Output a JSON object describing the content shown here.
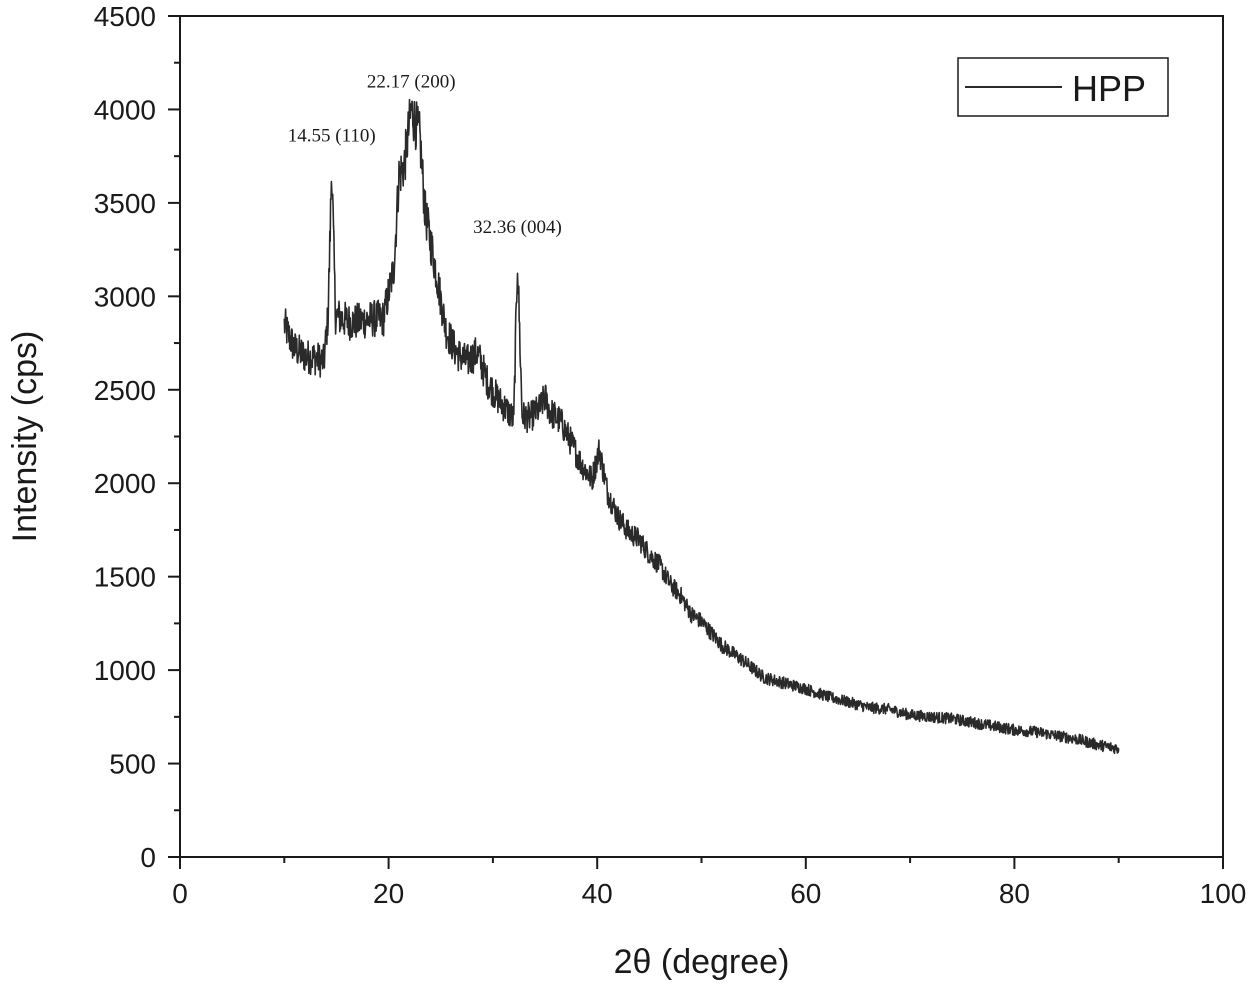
{
  "chart_data": {
    "type": "line",
    "title": "",
    "xlabel": "2θ (degree)",
    "ylabel": "Intensity (cps)",
    "xlim": [
      0,
      100
    ],
    "ylim": [
      0,
      4500
    ],
    "xticks": [
      0,
      20,
      40,
      60,
      80,
      100
    ],
    "yticks": [
      0,
      500,
      1000,
      1500,
      2000,
      2500,
      3000,
      3500,
      4000,
      4500
    ],
    "grid": false,
    "legend": {
      "position": "top-right",
      "entries": [
        "HPP"
      ]
    },
    "line_color": "#2a2a2a",
    "series": [
      {
        "name": "HPP",
        "x": [
          10,
          10.5,
          11,
          12,
          13,
          13.8,
          14.2,
          14.55,
          14.9,
          15.5,
          16.5,
          17.5,
          18.5,
          19.5,
          20.5,
          21,
          21.5,
          22.17,
          23,
          23.5,
          24.5,
          25.5,
          26.5,
          27.5,
          28.5,
          29.5,
          30.5,
          31.5,
          32.0,
          32.36,
          32.8,
          33.5,
          34.5,
          35,
          35.5,
          36.5,
          37.5,
          38.5,
          39.5,
          40.2,
          41,
          42,
          43,
          44,
          45,
          46,
          47,
          48,
          49,
          50,
          52,
          54,
          56,
          58,
          60,
          62,
          64,
          66,
          68,
          70,
          72,
          74,
          76,
          78,
          80,
          82,
          84,
          86,
          88,
          90
        ],
        "y": [
          2850,
          2780,
          2720,
          2680,
          2670,
          2650,
          2900,
          3700,
          2900,
          2880,
          2860,
          2870,
          2880,
          2880,
          3150,
          3650,
          3700,
          4000,
          3850,
          3450,
          3150,
          2820,
          2700,
          2650,
          2700,
          2540,
          2450,
          2380,
          2340,
          3200,
          2360,
          2350,
          2400,
          2460,
          2380,
          2330,
          2220,
          2100,
          2020,
          2180,
          1950,
          1820,
          1740,
          1700,
          1620,
          1560,
          1460,
          1400,
          1300,
          1260,
          1130,
          1050,
          960,
          930,
          900,
          860,
          830,
          800,
          790,
          760,
          750,
          740,
          720,
          700,
          680,
          670,
          650,
          630,
          600,
          580
        ]
      }
    ],
    "annotations": [
      {
        "text": "14.55 (110)",
        "x": 14.55,
        "y": 3700
      },
      {
        "text": "22.17 (200)",
        "x": 22.17,
        "y": 4000
      },
      {
        "text": "32.36 (004)",
        "x": 32.36,
        "y": 3200
      }
    ]
  }
}
